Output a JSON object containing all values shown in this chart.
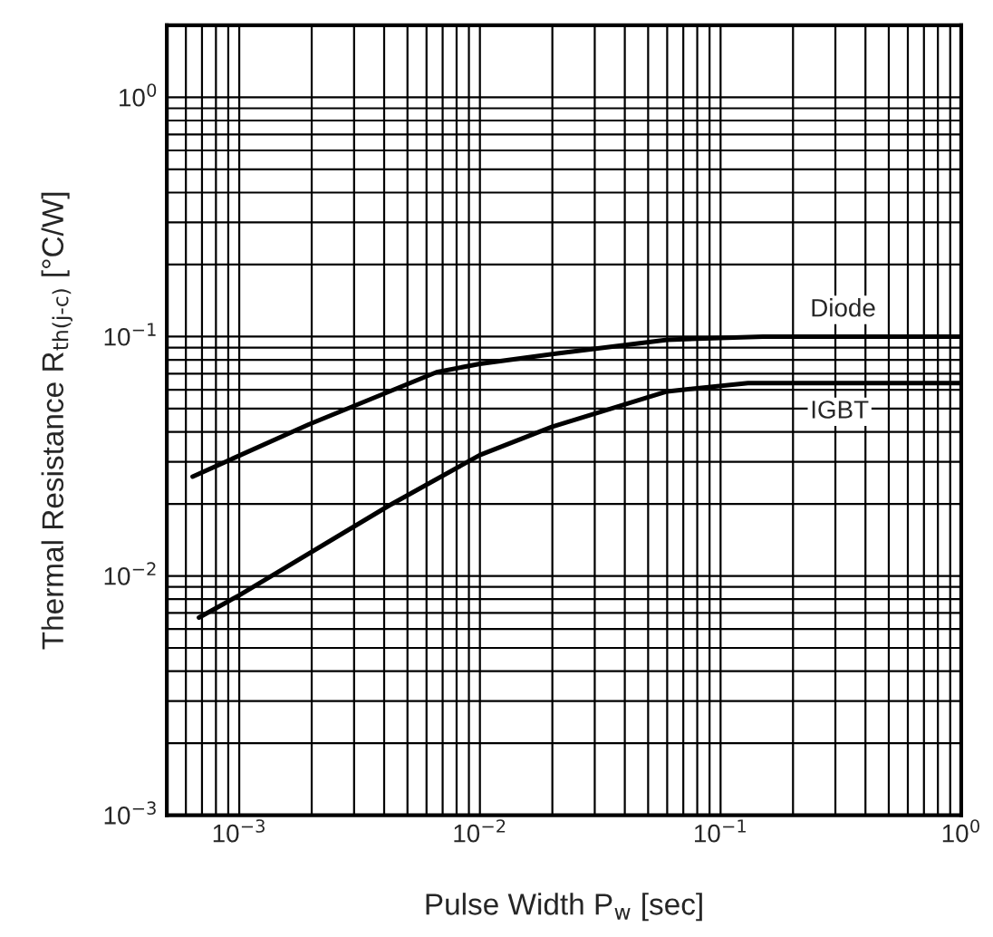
{
  "chart_data": {
    "type": "line",
    "xlabel": "Pulse Width P$_{w}$ [sec]",
    "ylabel": "Thermal Resistance R$_{th(j-c)}$ [°C/W]",
    "log": "xy",
    "grid": true,
    "legend": false,
    "marker": "none",
    "line_style": "solid",
    "xlim": [
      0.0005,
      1
    ],
    "ylim": [
      0.001,
      2
    ],
    "xticks": [
      {
        "value": 0.001,
        "label": "10$^{−3}$"
      },
      {
        "value": 0.01,
        "label": "10$^{−2}$"
      },
      {
        "value": 0.1,
        "label": "10$^{−1}$"
      },
      {
        "value": 1,
        "label": "10$^{0}$"
      }
    ],
    "yticks": [
      {
        "value": 0.001,
        "label": "10$^{−3}$"
      },
      {
        "value": 0.01,
        "label": "10$^{−2}$"
      },
      {
        "value": 0.1,
        "label": "10$^{−1}$"
      },
      {
        "value": 1,
        "label": "10$^{0}$"
      }
    ],
    "series": [
      {
        "name": "Diode",
        "color": "#000000",
        "x": [
          0.00064,
          0.00195,
          0.0066,
          0.01,
          0.021,
          0.06,
          0.15,
          1
        ],
        "values": [
          0.026,
          0.043,
          0.071,
          0.077,
          0.085,
          0.097,
          0.1,
          0.1
        ]
      },
      {
        "name": "IGBT",
        "color": "#000000",
        "x": [
          0.00068,
          0.001,
          0.0042,
          0.01,
          0.02,
          0.06,
          0.13,
          1
        ],
        "values": [
          0.0067,
          0.0083,
          0.0197,
          0.032,
          0.042,
          0.059,
          0.064,
          0.064
        ]
      }
    ]
  }
}
